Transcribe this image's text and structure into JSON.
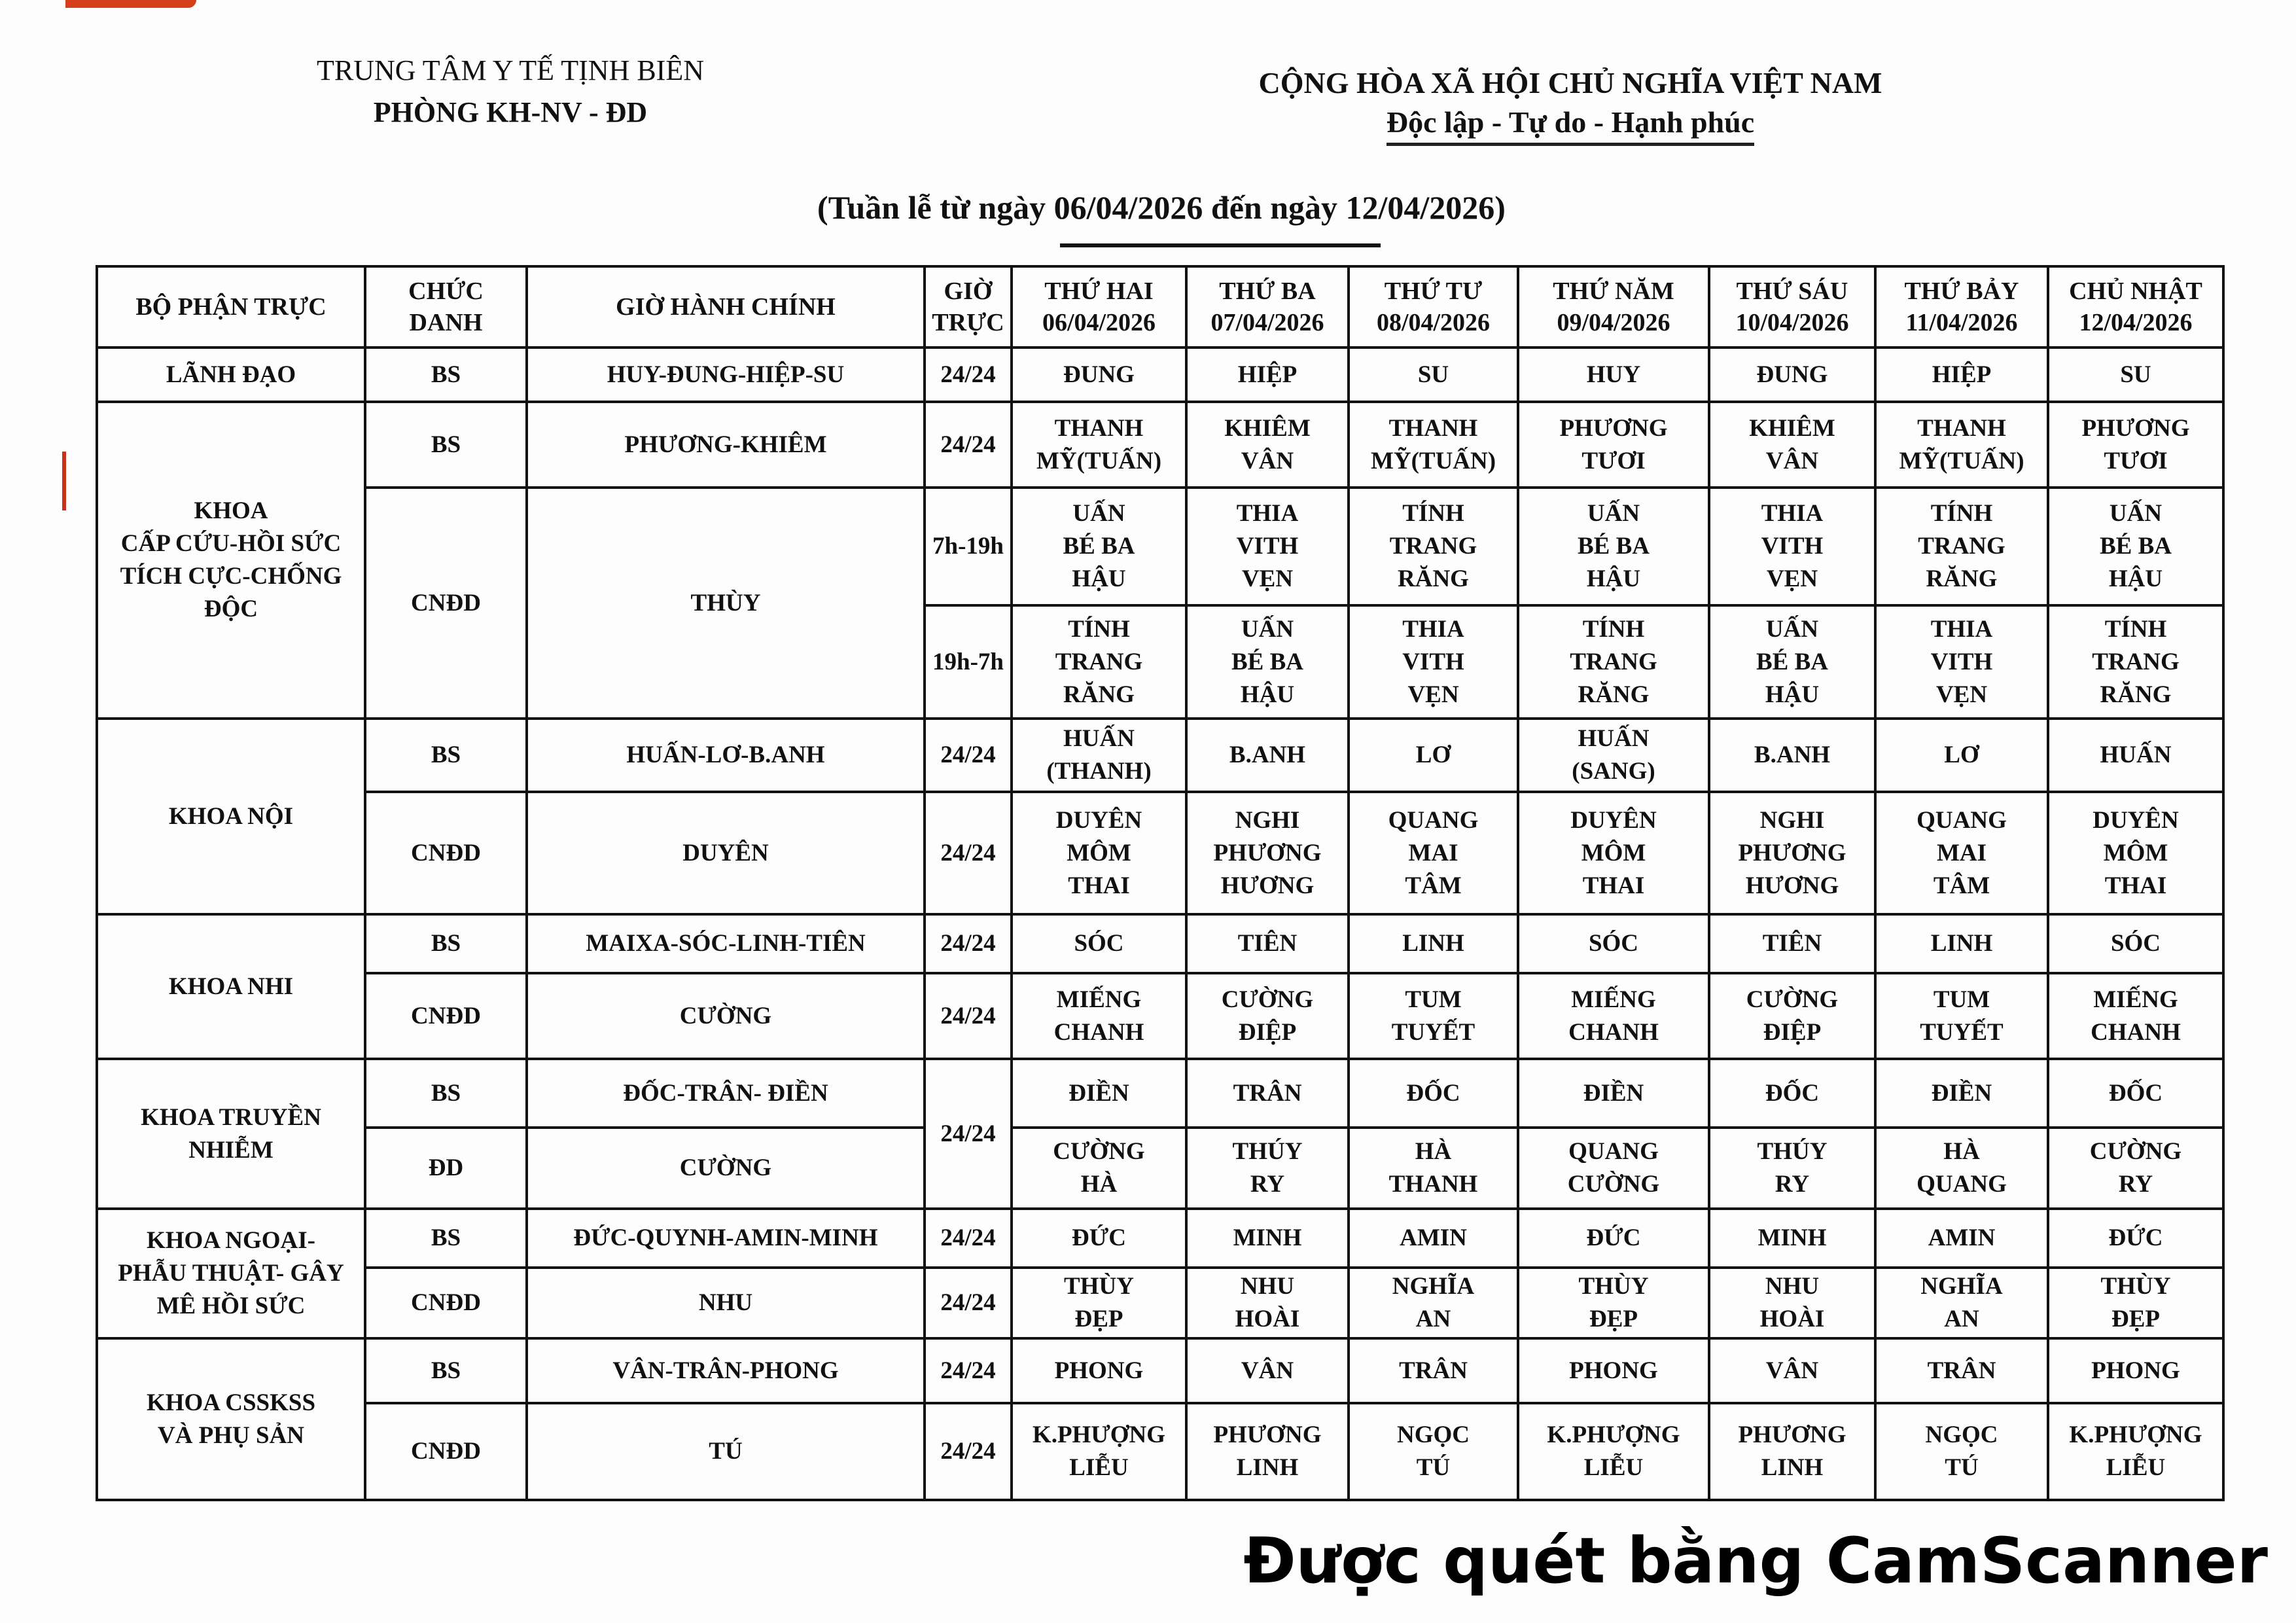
{
  "header": {
    "org_line1": "TRUNG TÂM Y TẾ TỊNH BIÊN",
    "org_line2": "PHÒNG KH-NV - ĐD",
    "nation_line1": "CỘNG HÒA XÃ HỘI CHỦ NGHĨA VIỆT NAM",
    "nation_line2": "Độc lập - Tự do - Hạnh phúc",
    "week_title": "(Tuần lễ từ ngày 06/04/2026 đến ngày 12/04/2026)"
  },
  "table": {
    "columns": {
      "department": "BỘ PHẬN TRỰC",
      "role": "CHỨC\nDANH",
      "admin_hours": "GIỜ HÀNH CHÍNH",
      "duty_hours": "GIỜ\nTRỰC"
    },
    "days": [
      {
        "name": "THỨ HAI",
        "date": "06/04/2026"
      },
      {
        "name": "THỨ BA",
        "date": "07/04/2026"
      },
      {
        "name": "THỨ TƯ",
        "date": "08/04/2026"
      },
      {
        "name": "THỨ NĂM",
        "date": "09/04/2026"
      },
      {
        "name": "THỨ SÁU",
        "date": "10/04/2026"
      },
      {
        "name": "THỨ BẢY",
        "date": "11/04/2026"
      },
      {
        "name": "CHỦ NHẬT",
        "date": "12/04/2026"
      }
    ],
    "departments": [
      {
        "name": "LÃNH ĐẠO",
        "roles": [
          {
            "title": "BS",
            "admin": "HUY-ĐUNG-HIỆP-SU",
            "shifts": [
              {
                "hours": "24/24",
                "days": [
                  "ĐUNG",
                  "HIỆP",
                  "SU",
                  "HUY",
                  "ĐUNG",
                  "HIỆP",
                  "SU"
                ]
              }
            ]
          }
        ]
      },
      {
        "name": "KHOA\nCẤP CỨU-HỒI SỨC\nTÍCH CỰC-CHỐNG\nĐỘC",
        "roles": [
          {
            "title": "BS",
            "admin": "PHƯƠNG-KHIÊM",
            "shifts": [
              {
                "hours": "24/24",
                "days": [
                  "THANH\nMỸ(TUẤN)",
                  "KHIÊM\nVÂN",
                  "THANH\nMỸ(TUẤN)",
                  "PHƯƠNG\nTƯƠI",
                  "KHIÊM\nVÂN",
                  "THANH\nMỸ(TUẤN)",
                  "PHƯƠNG\nTƯƠI"
                ]
              }
            ]
          },
          {
            "title": "CNĐD",
            "admin": "THÙY",
            "shifts": [
              {
                "hours": "7h-19h",
                "days": [
                  "UẤN\nBÉ BA\nHẬU",
                  "THIA\nVITH\nVẸN",
                  "TÍNH\nTRANG\nRĂNG",
                  "UẤN\nBÉ BA\nHẬU",
                  "THIA\nVITH\nVẸN",
                  "TÍNH\nTRANG\nRĂNG",
                  "UẤN\nBÉ BA\nHẬU"
                ]
              },
              {
                "hours": "19h-7h",
                "days": [
                  "TÍNH\nTRANG\nRĂNG",
                  "UẤN\nBÉ BA\nHẬU",
                  "THIA\nVITH\nVẸN",
                  "TÍNH\nTRANG\nRĂNG",
                  "UẤN\nBÉ BA\nHẬU",
                  "THIA\nVITH\nVẸN",
                  "TÍNH\nTRANG\nRĂNG"
                ]
              }
            ]
          }
        ]
      },
      {
        "name": "KHOA NỘI",
        "roles": [
          {
            "title": "BS",
            "admin": "HUẤN-LƠ-B.ANH",
            "shifts": [
              {
                "hours": "24/24",
                "days": [
                  "HUẤN\n(THANH)",
                  "B.ANH",
                  "LƠ",
                  "HUẤN\n(SANG)",
                  "B.ANH",
                  "LƠ",
                  "HUẤN"
                ]
              }
            ]
          },
          {
            "title": "CNĐD",
            "admin": "DUYÊN",
            "shifts": [
              {
                "hours": "24/24",
                "days": [
                  "DUYÊN\nMÔM\nTHAI",
                  "NGHI\nPHƯƠNG\nHƯƠNG",
                  "QUANG\nMAI\nTÂM",
                  "DUYÊN\nMÔM\nTHAI",
                  "NGHI\nPHƯƠNG\nHƯƠNG",
                  "QUANG\nMAI\nTÂM",
                  "DUYÊN\nMÔM\nTHAI"
                ]
              }
            ]
          }
        ]
      },
      {
        "name": "KHOA NHI",
        "roles": [
          {
            "title": "BS",
            "admin": "MAIXA-SÓC-LINH-TIÊN",
            "shifts": [
              {
                "hours": "24/24",
                "days": [
                  "SÓC",
                  "TIÊN",
                  "LINH",
                  "SÓC",
                  "TIÊN",
                  "LINH",
                  "SÓC"
                ]
              }
            ]
          },
          {
            "title": "CNĐD",
            "admin": "CƯỜNG",
            "shifts": [
              {
                "hours": "24/24",
                "days": [
                  "MIẾNG\nCHANH",
                  "CƯỜNG\nĐIỆP",
                  "TUM\nTUYẾT",
                  "MIẾNG\nCHANH",
                  "CƯỜNG\nĐIỆP",
                  "TUM\nTUYẾT",
                  "MIẾNG\nCHANH"
                ]
              }
            ]
          }
        ]
      },
      {
        "name": "KHOA TRUYỀN\nNHIỄM",
        "shared_hours": "24/24",
        "roles": [
          {
            "title": "BS",
            "admin": "ĐỐC-TRÂN- ĐIỀN",
            "shifts": [
              {
                "days": [
                  "ĐIỀN",
                  "TRÂN",
                  "ĐỐC",
                  "ĐIỀN",
                  "ĐỐC",
                  "ĐIỀN",
                  "ĐỐC"
                ]
              }
            ]
          },
          {
            "title": "ĐD",
            "admin": "CƯỜNG",
            "shifts": [
              {
                "days": [
                  "CƯỜNG\nHÀ",
                  "THÚY\nRY",
                  "HÀ\nTHANH",
                  "QUANG\nCƯỜNG",
                  "THÚY\nRY",
                  "HÀ\nQUANG",
                  "CƯỜNG\nRY"
                ]
              }
            ]
          }
        ]
      },
      {
        "name": "KHOA NGOẠI-\nPHẪU THUẬT- GÂY\nMÊ HỒI SỨC",
        "roles": [
          {
            "title": "BS",
            "admin": "ĐỨC-QUYNH-AMIN-MINH",
            "shifts": [
              {
                "hours": "24/24",
                "days": [
                  "ĐỨC",
                  "MINH",
                  "AMIN",
                  "ĐỨC",
                  "MINH",
                  "AMIN",
                  "ĐỨC"
                ]
              }
            ]
          },
          {
            "title": "CNĐD",
            "admin": "NHU",
            "shifts": [
              {
                "hours": "24/24",
                "days": [
                  "THÙY\nĐẸP",
                  "NHU\nHOÀI",
                  "NGHĨA\nAN",
                  "THÙY\nĐẸP",
                  "NHU\nHOÀI",
                  "NGHĨA\nAN",
                  "THÙY\nĐẸP"
                ]
              }
            ]
          }
        ]
      },
      {
        "name": "KHOA CSSKSS\nVÀ PHỤ SẢN",
        "roles": [
          {
            "title": "BS",
            "admin": "VÂN-TRÂN-PHONG",
            "shifts": [
              {
                "hours": "24/24",
                "days": [
                  "PHONG",
                  "VÂN",
                  "TRÂN",
                  "PHONG",
                  "VÂN",
                  "TRÂN",
                  "PHONG"
                ]
              }
            ]
          },
          {
            "title": "CNĐD",
            "admin": "TÚ",
            "shifts": [
              {
                "hours": "24/24",
                "days": [
                  "K.PHƯỢNG\nLIỄU",
                  "PHƯƠNG\nLINH",
                  "NGỌC\nTÚ",
                  "K.PHƯỢNG\nLIỄU",
                  "PHƯƠNG\nLINH",
                  "NGỌC\nTÚ",
                  "K.PHƯỢNG\nLIỄU"
                ]
              }
            ]
          }
        ]
      }
    ]
  },
  "watermark": "Được quét bằng CamScanner"
}
